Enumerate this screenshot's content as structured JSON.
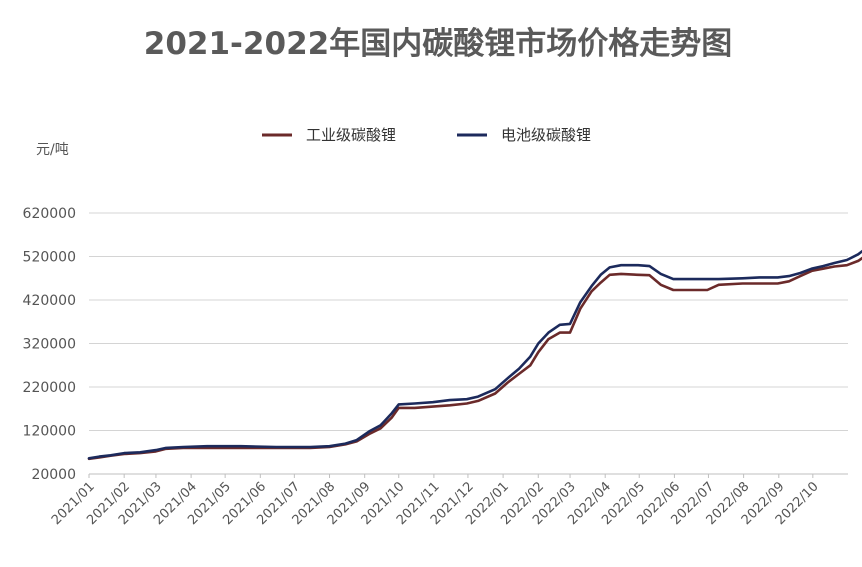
{
  "chart_data": {
    "type": "line",
    "title": "2021-2022年国内碳酸锂市场价格走势图",
    "ylabel": "元/吨",
    "xlabel": "",
    "ylim": [
      20000,
      620000
    ],
    "yticks": [
      "620000",
      "520000",
      "420000",
      "320000",
      "220000",
      "120000",
      "20000"
    ],
    "x": [
      "2021/01",
      "2021/02",
      "2021/03",
      "2021/04",
      "2021/05",
      "2021/06",
      "2021/07",
      "2021/08",
      "2021/09",
      "2021/10",
      "2021/11",
      "2021/12",
      "2022/01",
      "2022/02",
      "2022/03",
      "2022/04",
      "2022/05",
      "2022/06",
      "2022/07",
      "2022/08",
      "2022/09",
      "2022/10"
    ],
    "legend_position": "top",
    "grid": true,
    "series": [
      {
        "name": "工业级碳酸锂",
        "color": "#6b2a2a",
        "points": [
          [
            "2021/01/01",
            55000
          ],
          [
            "2021/01/10",
            58000
          ],
          [
            "2021/01/20",
            62000
          ],
          [
            "2021/02/01",
            66000
          ],
          [
            "2021/02/15",
            68000
          ],
          [
            "2021/03/01",
            72000
          ],
          [
            "2021/03/10",
            78000
          ],
          [
            "2021/03/25",
            80000
          ],
          [
            "2021/04/15",
            80000
          ],
          [
            "2021/05/15",
            80000
          ],
          [
            "2021/06/15",
            80000
          ],
          [
            "2021/07/15",
            80000
          ],
          [
            "2021/08/01",
            82000
          ],
          [
            "2021/08/15",
            88000
          ],
          [
            "2021/08/25",
            95000
          ],
          [
            "2021/09/05",
            112000
          ],
          [
            "2021/09/15",
            125000
          ],
          [
            "2021/09/25",
            150000
          ],
          [
            "2021/10/01",
            172000
          ],
          [
            "2021/10/15",
            172000
          ],
          [
            "2021/10/31",
            175000
          ],
          [
            "2021/11/15",
            178000
          ],
          [
            "2021/11/30",
            182000
          ],
          [
            "2021/12/10",
            188000
          ],
          [
            "2021/12/25",
            205000
          ],
          [
            "2022/01/05",
            230000
          ],
          [
            "2022/01/15",
            250000
          ],
          [
            "2022/01/25",
            270000
          ],
          [
            "2022/02/01",
            300000
          ],
          [
            "2022/02/10",
            330000
          ],
          [
            "2022/02/20",
            345000
          ],
          [
            "2022/03/01",
            345000
          ],
          [
            "2022/03/10",
            400000
          ],
          [
            "2022/03/20",
            440000
          ],
          [
            "2022/03/28",
            460000
          ],
          [
            "2022/04/05",
            478000
          ],
          [
            "2022/04/15",
            480000
          ],
          [
            "2022/04/30",
            478000
          ],
          [
            "2022/05/10",
            477000
          ],
          [
            "2022/05/20",
            455000
          ],
          [
            "2022/05/31",
            443000
          ],
          [
            "2022/06/15",
            443000
          ],
          [
            "2022/06/30",
            443000
          ],
          [
            "2022/07/10",
            455000
          ],
          [
            "2022/07/31",
            458000
          ],
          [
            "2022/08/15",
            458000
          ],
          [
            "2022/08/31",
            458000
          ],
          [
            "2022/09/10",
            463000
          ],
          [
            "2022/09/20",
            475000
          ],
          [
            "2022/09/30",
            487000
          ],
          [
            "2022/10/10",
            492000
          ],
          [
            "2022/10/20",
            497000
          ],
          [
            "2022/10/31",
            500000
          ],
          [
            "2022/11/10",
            510000
          ],
          [
            "2022/11/20",
            528000
          ]
        ]
      },
      {
        "name": "电池级碳酸锂",
        "color": "#1c2a5c",
        "points": [
          [
            "2021/01/01",
            56000
          ],
          [
            "2021/01/10",
            60000
          ],
          [
            "2021/01/20",
            63000
          ],
          [
            "2021/02/01",
            68000
          ],
          [
            "2021/02/15",
            70000
          ],
          [
            "2021/03/01",
            75000
          ],
          [
            "2021/03/10",
            80000
          ],
          [
            "2021/03/25",
            82000
          ],
          [
            "2021/04/15",
            84000
          ],
          [
            "2021/05/15",
            84000
          ],
          [
            "2021/06/15",
            82000
          ],
          [
            "2021/07/15",
            82000
          ],
          [
            "2021/08/01",
            84000
          ],
          [
            "2021/08/15",
            90000
          ],
          [
            "2021/08/25",
            98000
          ],
          [
            "2021/09/05",
            118000
          ],
          [
            "2021/09/15",
            132000
          ],
          [
            "2021/09/25",
            160000
          ],
          [
            "2021/10/01",
            180000
          ],
          [
            "2021/10/15",
            182000
          ],
          [
            "2021/10/31",
            185000
          ],
          [
            "2021/11/15",
            190000
          ],
          [
            "2021/11/30",
            192000
          ],
          [
            "2021/12/10",
            198000
          ],
          [
            "2021/12/25",
            215000
          ],
          [
            "2022/01/05",
            240000
          ],
          [
            "2022/01/15",
            262000
          ],
          [
            "2022/01/25",
            290000
          ],
          [
            "2022/02/01",
            320000
          ],
          [
            "2022/02/10",
            345000
          ],
          [
            "2022/02/20",
            363000
          ],
          [
            "2022/03/01",
            365000
          ],
          [
            "2022/03/10",
            415000
          ],
          [
            "2022/03/20",
            452000
          ],
          [
            "2022/03/28",
            478000
          ],
          [
            "2022/04/05",
            495000
          ],
          [
            "2022/04/15",
            500000
          ],
          [
            "2022/04/30",
            500000
          ],
          [
            "2022/05/10",
            498000
          ],
          [
            "2022/05/20",
            480000
          ],
          [
            "2022/05/31",
            468000
          ],
          [
            "2022/06/15",
            468000
          ],
          [
            "2022/06/30",
            468000
          ],
          [
            "2022/07/10",
            468000
          ],
          [
            "2022/07/31",
            470000
          ],
          [
            "2022/08/15",
            472000
          ],
          [
            "2022/08/31",
            472000
          ],
          [
            "2022/09/10",
            475000
          ],
          [
            "2022/09/20",
            482000
          ],
          [
            "2022/09/30",
            492000
          ],
          [
            "2022/10/10",
            498000
          ],
          [
            "2022/10/20",
            505000
          ],
          [
            "2022/10/31",
            512000
          ],
          [
            "2022/11/10",
            525000
          ],
          [
            "2022/11/20",
            545000
          ]
        ]
      }
    ]
  }
}
